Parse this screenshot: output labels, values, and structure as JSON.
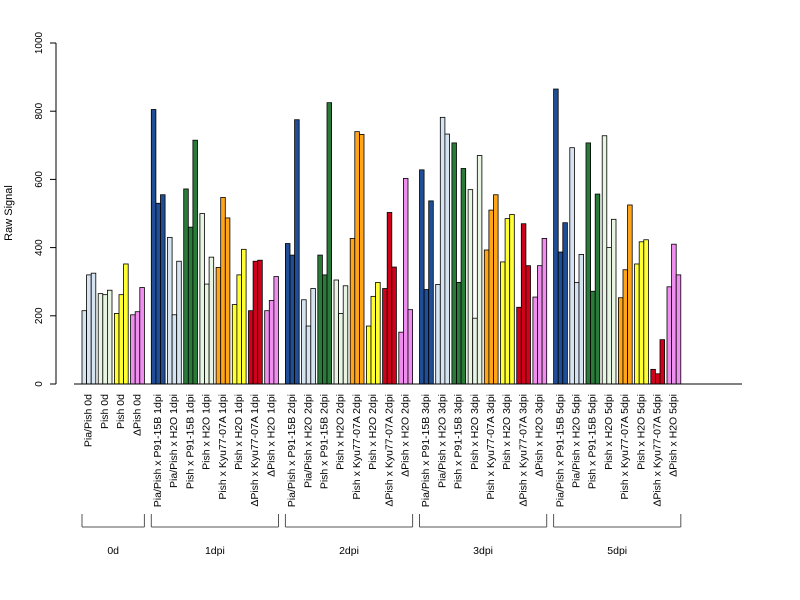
{
  "chart_data": {
    "type": "bar",
    "ylabel": "Raw Signal",
    "ylim": [
      0,
      1000
    ],
    "yticks": [
      0,
      200,
      400,
      600,
      800,
      1000
    ],
    "grid": false,
    "colors": {
      "Pia/Pish": "#cfe0f3",
      "Pia/Pish x P91-15B": "#1f4e96",
      "Pia/Pish x H2O": "#cfe0f3",
      "Pish": "#e8f4e4",
      "Pish x P91-15B": "#2a7b3a",
      "Pish x H2O": "#e8f4e4",
      "Pish x Kyu77-07A": "#ffa51a",
      "Pish x H2O (Kyu)": "#ffff33",
      "ΔPish x Kyu77-07A": "#d0021b",
      "ΔPish x H2O": "#f08ef0",
      "Pish 0d yellow": "#ffff33",
      "ΔPish 0d": "#f08ef0"
    },
    "groups": [
      {
        "label": "0d",
        "categories": [
          {
            "label": "Pia/Pish 0d",
            "values": [
              215,
              320,
              325
            ],
            "color": "#d6e4f2"
          },
          {
            "label": "Pish 0d",
            "values": [
              265,
              262,
              275
            ],
            "color": "#e8f5e2"
          },
          {
            "label": "Pish 0d",
            "values": [
              207,
              262,
              352
            ],
            "color": "#ffff33"
          },
          {
            "label": "ΔPish 0d",
            "values": [
              203,
              212,
              283
            ],
            "color": "#f08ef0"
          }
        ]
      },
      {
        "label": "1dpi",
        "categories": [
          {
            "label": "Pia/Pish x P91-15B 1dpi",
            "values": [
              805,
              530,
              555
            ],
            "color": "#1f4e96"
          },
          {
            "label": "Pia/Pish x H2O 1dpi",
            "values": [
              430,
              203,
              360
            ],
            "color": "#d6e4f2"
          },
          {
            "label": "Pish x P91-15B 1dpi",
            "values": [
              572,
              460,
              715
            ],
            "color": "#2a7b3a"
          },
          {
            "label": "Pish x H2O 1dpi",
            "values": [
              500,
              293,
              372
            ],
            "color": "#e8f5e2"
          },
          {
            "label": "Pish x Kyu77-07A 1dpi",
            "values": [
              342,
              547,
              487
            ],
            "color": "#ffa51a"
          },
          {
            "label": "Pish x H2O 1dpi",
            "values": [
              233,
              320,
              395
            ],
            "color": "#ffff33"
          },
          {
            "label": "ΔPish x Kyu77-07A 1dpi",
            "values": [
              215,
              360,
              363
            ],
            "color": "#d0021b"
          },
          {
            "label": "ΔPish x H2O 1dpi",
            "values": [
              215,
              245,
              315
            ],
            "color": "#f08ef0"
          }
        ]
      },
      {
        "label": "2dpi",
        "categories": [
          {
            "label": "Pia/Pish x P91-15B 2dpi",
            "values": [
              412,
              378,
              775
            ],
            "color": "#1f4e96"
          },
          {
            "label": "Pia/Pish x H2O 2dpi",
            "values": [
              247,
              170,
              280
            ],
            "color": "#d6e4f2"
          },
          {
            "label": "Pish x P91-15B 2dpi",
            "values": [
              378,
              320,
              825
            ],
            "color": "#2a7b3a"
          },
          {
            "label": "Pish x H2O 2dpi",
            "values": [
              305,
              207,
              288
            ],
            "color": "#e8f5e2"
          },
          {
            "label": "Pish x Kyu77-07A 2dpi",
            "values": [
              427,
              740,
              732
            ],
            "color": "#ffa51a"
          },
          {
            "label": "Pish x H2O 2dpi",
            "values": [
              170,
              257,
              298
            ],
            "color": "#ffff33"
          },
          {
            "label": "ΔPish x Kyu77-07A 2dpi",
            "values": [
              280,
              503,
              343
            ],
            "color": "#d0021b"
          },
          {
            "label": "ΔPish x H2O 2dpi",
            "values": [
              152,
              603,
              218
            ],
            "color": "#f08ef0"
          }
        ]
      },
      {
        "label": "3dpi",
        "categories": [
          {
            "label": "Pia/Pish x P91-15B 3dpi",
            "values": [
              628,
              277,
              537
            ],
            "color": "#1f4e96"
          },
          {
            "label": "Pia/Pish x H2O 3dpi",
            "values": [
              292,
              782,
              733
            ],
            "color": "#d6e4f2"
          },
          {
            "label": "Pish x P91-15B 3dpi",
            "values": [
              707,
              298,
              632
            ],
            "color": "#2a7b3a"
          },
          {
            "label": "Pish x H2O 3dpi",
            "values": [
              570,
              193,
              670
            ],
            "color": "#e8f5e2"
          },
          {
            "label": "Pish x Kyu77-07A 3dpi",
            "values": [
              393,
              510,
              555
            ],
            "color": "#ffa51a"
          },
          {
            "label": "Pish x H2O 3dpi",
            "values": [
              358,
              485,
              497
            ],
            "color": "#ffff33"
          },
          {
            "label": "ΔPish x Kyu77-07A 3dpi",
            "values": [
              225,
              470,
              347
            ],
            "color": "#d0021b"
          },
          {
            "label": "ΔPish x H2O 3dpi",
            "values": [
              255,
              347,
              427
            ],
            "color": "#f08ef0"
          }
        ]
      },
      {
        "label": "5dpi",
        "categories": [
          {
            "label": "Pia/Pish x P91-15B 5dpi",
            "values": [
              865,
              387,
              473
            ],
            "color": "#1f4e96"
          },
          {
            "label": "Pia/Pish x H2O 5dpi",
            "values": [
              693,
              298,
              380
            ],
            "color": "#d6e4f2"
          },
          {
            "label": "Pish x P91-15B 5dpi",
            "values": [
              707,
              272,
              557
            ],
            "color": "#2a7b3a"
          },
          {
            "label": "Pish x H2O 5dpi",
            "values": [
              728,
              400,
              483
            ],
            "color": "#e8f5e2"
          },
          {
            "label": "Pish x Kyu77-07A 5dpi",
            "values": [
              253,
              335,
              525
            ],
            "color": "#ffa51a"
          },
          {
            "label": "Pish x H2O 5dpi",
            "values": [
              352,
              417,
              423
            ],
            "color": "#ffff33"
          },
          {
            "label": "ΔPish x Kyu77-07A 5dpi",
            "values": [
              43,
              30,
              130
            ],
            "color": "#d0021b"
          },
          {
            "label": "ΔPish x H2O 5dpi",
            "values": [
              285,
              410,
              320
            ],
            "color": "#f08ef0"
          }
        ]
      }
    ]
  }
}
